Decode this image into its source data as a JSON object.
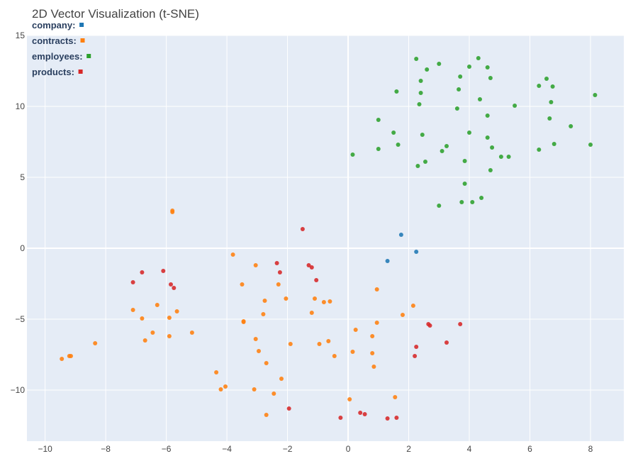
{
  "chart_data": {
    "type": "scatter",
    "title": "2D Vector Visualization (t-SNE)",
    "xlabel": "",
    "ylabel": "",
    "xlim": [
      -10.6,
      9.1
    ],
    "ylim": [
      -13.6,
      15.0
    ],
    "x_ticks": [
      -10,
      -8,
      -6,
      -4,
      -2,
      0,
      2,
      4,
      6,
      8
    ],
    "x_tick_labels": [
      "−10",
      "−8",
      "−6",
      "−4",
      "−2",
      "0",
      "2",
      "4",
      "6",
      "8"
    ],
    "y_ticks": [
      -10,
      -5,
      0,
      5,
      10,
      15
    ],
    "y_tick_labels": [
      "−10",
      "−5",
      "0",
      "5",
      "10",
      "15"
    ],
    "grid": true,
    "legend_position": "top-left",
    "background": "#e5ecf6",
    "series": [
      {
        "name": "company",
        "color": "#1f77b4",
        "points": [
          [
            1.75,
            0.95
          ],
          [
            2.25,
            -0.25
          ],
          [
            1.3,
            -0.9
          ]
        ]
      },
      {
        "name": "contracts",
        "color": "#ff7f0e",
        "points": [
          [
            -5.8,
            2.65
          ],
          [
            -5.8,
            2.55
          ],
          [
            -3.8,
            -0.45
          ],
          [
            -3.05,
            -1.2
          ],
          [
            -3.5,
            -2.55
          ],
          [
            -2.3,
            -2.55
          ],
          [
            -7.1,
            -4.35
          ],
          [
            -6.3,
            -4.0
          ],
          [
            -5.65,
            -4.45
          ],
          [
            -5.9,
            -4.9
          ],
          [
            -6.8,
            -4.95
          ],
          [
            -6.45,
            -5.95
          ],
          [
            -6.7,
            -6.5
          ],
          [
            -5.9,
            -6.2
          ],
          [
            -5.15,
            -5.95
          ],
          [
            -8.35,
            -6.7
          ],
          [
            -9.2,
            -7.6
          ],
          [
            -9.15,
            -7.6
          ],
          [
            -9.45,
            -7.8
          ],
          [
            -2.75,
            -3.7
          ],
          [
            -2.05,
            -3.55
          ],
          [
            -1.1,
            -3.55
          ],
          [
            -0.8,
            -3.8
          ],
          [
            -0.6,
            -3.75
          ],
          [
            -1.2,
            -4.55
          ],
          [
            -2.8,
            -4.65
          ],
          [
            -3.45,
            -5.15
          ],
          [
            -3.45,
            -5.2
          ],
          [
            -3.05,
            -6.4
          ],
          [
            -2.95,
            -7.25
          ],
          [
            -2.7,
            -8.1
          ],
          [
            -1.9,
            -6.75
          ],
          [
            -0.95,
            -6.75
          ],
          [
            -0.65,
            -6.55
          ],
          [
            -0.45,
            -7.6
          ],
          [
            0.25,
            -5.75
          ],
          [
            0.15,
            -7.3
          ],
          [
            0.8,
            -6.2
          ],
          [
            0.95,
            -5.25
          ],
          [
            0.8,
            -7.4
          ],
          [
            0.85,
            -8.35
          ],
          [
            0.95,
            -2.9
          ],
          [
            1.8,
            -4.7
          ],
          [
            2.15,
            -4.05
          ],
          [
            -4.35,
            -8.75
          ],
          [
            -4.05,
            -9.75
          ],
          [
            -4.2,
            -9.95
          ],
          [
            -3.1,
            -9.95
          ],
          [
            -2.2,
            -9.2
          ],
          [
            -2.45,
            -10.25
          ],
          [
            -2.7,
            -11.75
          ],
          [
            0.05,
            -10.65
          ],
          [
            1.55,
            -10.5
          ]
        ]
      },
      {
        "name": "employees",
        "color": "#2ca02c",
        "points": [
          [
            2.25,
            13.35
          ],
          [
            3.0,
            13.0
          ],
          [
            2.6,
            12.6
          ],
          [
            4.3,
            13.4
          ],
          [
            4.0,
            12.8
          ],
          [
            4.6,
            12.75
          ],
          [
            3.7,
            12.1
          ],
          [
            4.7,
            12.0
          ],
          [
            2.4,
            11.8
          ],
          [
            1.6,
            11.05
          ],
          [
            2.4,
            10.95
          ],
          [
            3.65,
            11.2
          ],
          [
            4.35,
            10.5
          ],
          [
            2.35,
            10.15
          ],
          [
            3.6,
            9.85
          ],
          [
            6.55,
            11.95
          ],
          [
            6.3,
            11.45
          ],
          [
            6.75,
            11.4
          ],
          [
            8.15,
            10.8
          ],
          [
            6.7,
            10.3
          ],
          [
            5.5,
            10.05
          ],
          [
            4.6,
            9.35
          ],
          [
            1.0,
            9.05
          ],
          [
            6.65,
            9.15
          ],
          [
            7.35,
            8.6
          ],
          [
            1.5,
            8.15
          ],
          [
            2.45,
            8.0
          ],
          [
            4.0,
            8.15
          ],
          [
            4.6,
            7.8
          ],
          [
            3.25,
            7.2
          ],
          [
            4.75,
            7.1
          ],
          [
            3.1,
            6.85
          ],
          [
            1.65,
            7.3
          ],
          [
            1.0,
            7.0
          ],
          [
            0.15,
            6.6
          ],
          [
            5.05,
            6.45
          ],
          [
            5.3,
            6.45
          ],
          [
            6.3,
            6.95
          ],
          [
            6.8,
            7.35
          ],
          [
            8.0,
            7.3
          ],
          [
            3.85,
            6.15
          ],
          [
            2.55,
            6.1
          ],
          [
            2.3,
            5.8
          ],
          [
            4.7,
            5.5
          ],
          [
            3.85,
            4.55
          ],
          [
            4.4,
            3.55
          ],
          [
            3.75,
            3.25
          ],
          [
            4.1,
            3.25
          ],
          [
            3.0,
            3.0
          ]
        ]
      },
      {
        "name": "products",
        "color": "#d62728",
        "points": [
          [
            -1.5,
            1.35
          ],
          [
            -6.8,
            -1.7
          ],
          [
            -6.1,
            -1.6
          ],
          [
            -7.1,
            -2.4
          ],
          [
            -5.85,
            -2.55
          ],
          [
            -5.75,
            -2.8
          ],
          [
            -2.35,
            -1.05
          ],
          [
            -2.25,
            -1.7
          ],
          [
            -1.3,
            -1.2
          ],
          [
            -1.2,
            -1.35
          ],
          [
            -1.05,
            -2.25
          ],
          [
            2.65,
            -5.35
          ],
          [
            2.7,
            -5.45
          ],
          [
            3.7,
            -5.35
          ],
          [
            2.25,
            -6.95
          ],
          [
            3.25,
            -6.65
          ],
          [
            2.2,
            -7.6
          ],
          [
            -1.95,
            -11.3
          ],
          [
            -0.25,
            -11.95
          ],
          [
            0.4,
            -11.6
          ],
          [
            0.55,
            -11.7
          ],
          [
            1.3,
            -12.0
          ],
          [
            1.6,
            -11.95
          ]
        ]
      }
    ]
  }
}
